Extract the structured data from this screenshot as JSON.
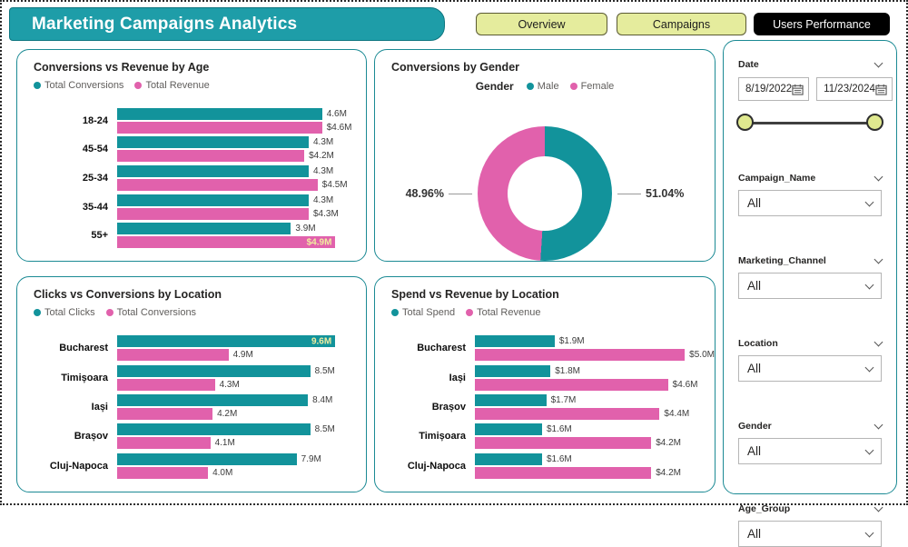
{
  "header": {
    "title": "Marketing Campaigns Analytics"
  },
  "tabs": [
    {
      "label": "Overview",
      "active": false
    },
    {
      "label": "Campaigns",
      "active": false
    },
    {
      "label": "Users Performance",
      "active": true
    }
  ],
  "colors": {
    "teal": "#12939B",
    "pink": "#E161AC",
    "header_bg": "#1E9DA8",
    "tab_bg": "#E5EC9D",
    "tab_active_bg": "#000000",
    "panel_border": "#1B8A94",
    "inside_label": "#F0ECA0",
    "slider_handle": "#E0E98F"
  },
  "chart_data": [
    {
      "type": "bar",
      "orientation": "horizontal",
      "title": "Conversions vs Revenue by Age",
      "axis_max": 5.15,
      "categories": [
        "18-24",
        "45-54",
        "25-34",
        "35-44",
        "55+"
      ],
      "series": [
        {
          "name": "Total Conversions",
          "color": "#12939B",
          "values": [
            4.6,
            4.3,
            4.3,
            4.3,
            3.9
          ],
          "labels": [
            "4.6M",
            "4.3M",
            "4.3M",
            "4.3M",
            "3.9M"
          ],
          "inside": [
            false,
            false,
            false,
            false,
            false
          ]
        },
        {
          "name": "Total Revenue",
          "color": "#E161AC",
          "values": [
            4.6,
            4.2,
            4.5,
            4.3,
            4.9
          ],
          "labels": [
            "$4.6M",
            "$4.2M",
            "$4.5M",
            "$4.3M",
            "$4.9M"
          ],
          "inside": [
            false,
            false,
            false,
            false,
            true
          ]
        }
      ]
    },
    {
      "type": "donut",
      "title": "Conversions by Gender",
      "legend_title": "Gender",
      "slices": [
        {
          "label": "Male",
          "value": 51.04,
          "display": "51.04%",
          "color": "#12939B",
          "callout_side": "right"
        },
        {
          "label": "Female",
          "value": 48.96,
          "display": "48.96%",
          "color": "#E161AC",
          "callout_side": "left"
        }
      ]
    },
    {
      "type": "bar",
      "orientation": "horizontal",
      "title": "Clicks vs Conversions by Location",
      "axis_max": 10.1,
      "categories": [
        "Bucharest",
        "Timișoara",
        "Iași",
        "Brașov",
        "Cluj-Napoca"
      ],
      "series": [
        {
          "name": "Total Clicks",
          "color": "#12939B",
          "values": [
            9.6,
            8.5,
            8.4,
            8.5,
            7.9
          ],
          "labels": [
            "9.6M",
            "8.5M",
            "8.4M",
            "8.5M",
            "7.9M"
          ],
          "inside": [
            true,
            false,
            false,
            false,
            false
          ]
        },
        {
          "name": "Total Conversions",
          "color": "#E161AC",
          "values": [
            4.9,
            4.3,
            4.2,
            4.1,
            4.0
          ],
          "labels": [
            "4.9M",
            "4.3M",
            "4.2M",
            "4.1M",
            "4.0M"
          ],
          "inside": [
            false,
            false,
            false,
            false,
            false
          ]
        }
      ]
    },
    {
      "type": "bar",
      "orientation": "horizontal",
      "title": "Spend vs Revenue by Location",
      "axis_max": 5.26,
      "categories": [
        "Bucharest",
        "Iași",
        "Brașov",
        "Timișoara",
        "Cluj-Napoca"
      ],
      "series": [
        {
          "name": "Total Spend",
          "color": "#12939B",
          "values": [
            1.9,
            1.8,
            1.7,
            1.6,
            1.6
          ],
          "labels": [
            "$1.9M",
            "$1.8M",
            "$1.7M",
            "$1.6M",
            "$1.6M"
          ],
          "inside": [
            false,
            false,
            false,
            false,
            false
          ]
        },
        {
          "name": "Total Revenue",
          "color": "#E161AC",
          "values": [
            5.0,
            4.6,
            4.4,
            4.2,
            4.2
          ],
          "labels": [
            "$5.0M",
            "$4.6M",
            "$4.4M",
            "$4.2M",
            "$4.2M"
          ],
          "inside": [
            false,
            false,
            false,
            false,
            false
          ]
        }
      ]
    }
  ],
  "filters": {
    "date": {
      "label": "Date",
      "start": "8/19/2022",
      "end": "11/23/2024"
    },
    "dropdowns": [
      {
        "label": "Campaign_Name",
        "value": "All"
      },
      {
        "label": "Marketing_Channel",
        "value": "All"
      },
      {
        "label": "Location",
        "value": "All"
      },
      {
        "label": "Gender",
        "value": "All"
      },
      {
        "label": "Age_Group",
        "value": "All"
      }
    ]
  }
}
